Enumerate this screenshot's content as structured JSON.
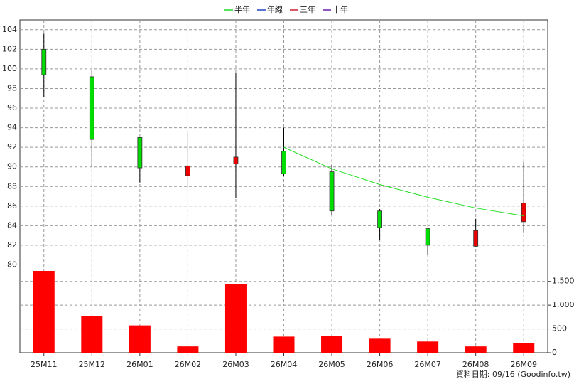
{
  "chart_data": {
    "type": "candlestick",
    "categories": [
      "25M11",
      "25M12",
      "26M01",
      "26M02",
      "26M03",
      "26M04",
      "26M05",
      "26M06",
      "26M07",
      "26M08",
      "26M09"
    ],
    "open": [
      102.0,
      99.2,
      93.0,
      89.1,
      90.3,
      91.6,
      89.5,
      85.5,
      83.7,
      81.9,
      84.4
    ],
    "high": [
      103.6,
      99.9,
      93.0,
      93.6,
      99.6,
      94.0,
      90.2,
      85.7,
      83.8,
      84.7,
      90.5
    ],
    "low": [
      97.1,
      90.0,
      88.4,
      87.9,
      86.8,
      89.1,
      85.1,
      82.5,
      81.0,
      81.8,
      83.3
    ],
    "close": [
      99.4,
      92.8,
      89.9,
      90.1,
      91.0,
      89.3,
      85.5,
      83.8,
      82.0,
      83.5,
      86.3
    ],
    "up_color": "#ee0000",
    "down_color": "#00dd00",
    "ylim": [
      79.6,
      105
    ],
    "yticks": [
      80,
      82,
      84,
      86,
      88,
      90,
      92,
      94,
      96,
      98,
      100,
      102,
      104
    ],
    "grid": true,
    "series": [
      {
        "name": "半年",
        "color": "#22dd22",
        "values": [
          null,
          null,
          null,
          null,
          null,
          92.0,
          89.8,
          88.2,
          86.9,
          85.8,
          85.0
        ]
      },
      {
        "name": "年線",
        "color": "#2244cc",
        "values": [
          null,
          null,
          null,
          null,
          null,
          null,
          null,
          null,
          null,
          null,
          null
        ]
      },
      {
        "name": "三年",
        "color": "#cc2233",
        "values": [
          null,
          null,
          null,
          null,
          null,
          null,
          null,
          null,
          null,
          null,
          null
        ]
      },
      {
        "name": "十年",
        "color": "#6622aa",
        "values": [
          null,
          null,
          null,
          null,
          null,
          null,
          null,
          null,
          null,
          null,
          null
        ]
      }
    ],
    "volume": {
      "color": "#ff0000",
      "values": [
        1720,
        765,
        574,
        132,
        1441,
        338,
        353,
        294,
        235,
        132,
        206
      ],
      "ylim": [
        0,
        1735
      ],
      "yticks": [
        0,
        500,
        {
          "value": 1000,
          "label": "1,000"
        },
        {
          "value": 1500,
          "label": "1,500"
        }
      ]
    },
    "footer": "資料日期: 09/16 (Goodinfo.tw)"
  }
}
